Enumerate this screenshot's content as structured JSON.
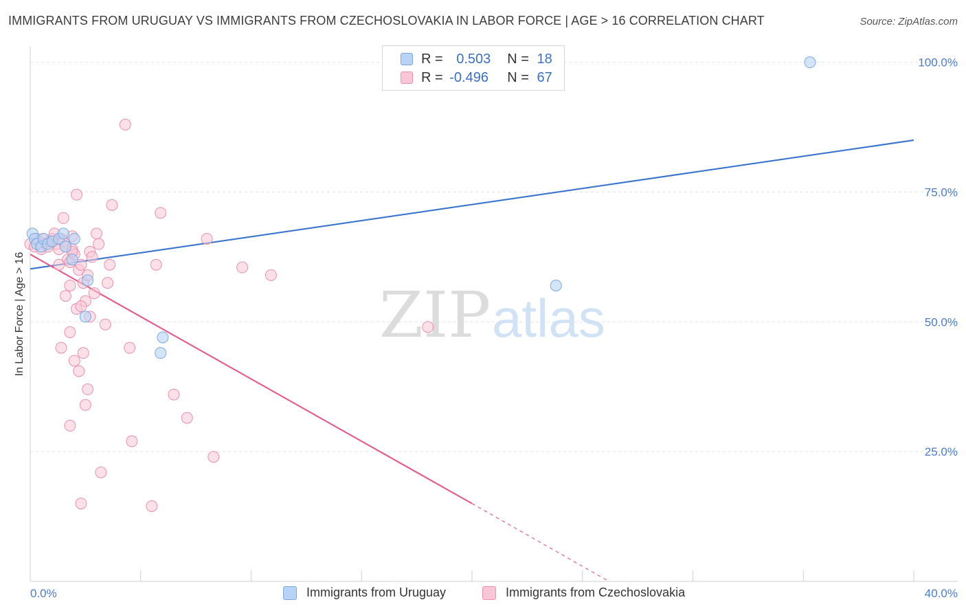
{
  "title": "IMMIGRANTS FROM URUGUAY VS IMMIGRANTS FROM CZECHOSLOVAKIA IN LABOR FORCE | AGE > 16 CORRELATION CHART",
  "source": "Source: ZipAtlas.com",
  "watermark": {
    "zip": "ZIP",
    "atlas": "atlas"
  },
  "legend_top": {
    "rows": [
      {
        "r_label": "R = ",
        "r_value": "0.503",
        "n_label": "N = ",
        "n_value": "18"
      },
      {
        "r_label": "R = ",
        "r_value": "-0.496",
        "n_label": "N = ",
        "n_value": "67"
      }
    ]
  },
  "legend_bottom": {
    "uruguay": "Immigrants from Uruguay",
    "czech": "Immigrants from Czechoslovakia"
  },
  "colors": {
    "uruguay_fill": "#b8d3f5",
    "uruguay_stroke": "#7aa7e0",
    "uruguay_line": "#3a74cc",
    "czech_fill": "#f9c6d6",
    "czech_stroke": "#ea8fae",
    "czech_line": "#e0608f",
    "grid": "#e3e3e3",
    "tick_text": "#4a7cc9"
  },
  "chart_data": {
    "type": "scatter",
    "title": "IMMIGRANTS FROM URUGUAY VS IMMIGRANTS FROM CZECHOSLOVAKIA IN LABOR FORCE | AGE > 16 CORRELATION CHART",
    "xlabel": "",
    "ylabel": "In Labor Force | Age > 16",
    "xlim": [
      0,
      40
    ],
    "ylim": [
      0,
      103
    ],
    "x_tick_labels": [
      "0.0%",
      "40.0%"
    ],
    "y_ticks": [
      25,
      50,
      75,
      100
    ],
    "y_tick_labels": [
      "25.0%",
      "50.0%",
      "75.0%",
      "100.0%"
    ],
    "grid": true,
    "series": [
      {
        "name": "Immigrants from Uruguay",
        "x": [
          0.1,
          0.2,
          0.3,
          0.5,
          0.6,
          0.8,
          1.0,
          1.3,
          1.5,
          1.6,
          1.9,
          2.0,
          2.5,
          2.6,
          5.9,
          6.0,
          23.8,
          35.3
        ],
        "y": [
          67.0,
          66.0,
          65.0,
          64.5,
          66.0,
          65.0,
          65.5,
          66.0,
          67.0,
          64.5,
          62.0,
          66.0,
          51.0,
          58.0,
          44.0,
          47.0,
          57.0,
          100.0
        ],
        "regression": {
          "x": [
            0,
            40
          ],
          "y": [
            60.2,
            85.0
          ]
        }
      },
      {
        "name": "Immigrants from Czechoslovakia",
        "x": [
          0.0,
          0.2,
          0.3,
          0.4,
          0.5,
          0.6,
          0.7,
          0.8,
          0.9,
          1.0,
          1.1,
          1.2,
          1.3,
          1.4,
          1.5,
          1.6,
          1.7,
          1.8,
          1.9,
          2.0,
          1.5,
          1.6,
          1.8,
          1.9,
          2.1,
          2.2,
          2.3,
          2.4,
          2.5,
          2.6,
          2.7,
          2.8,
          2.9,
          3.0,
          1.3,
          1.4,
          1.8,
          2.0,
          2.2,
          2.5,
          2.6,
          2.7,
          3.2,
          3.4,
          3.5,
          3.6,
          1.9,
          2.1,
          2.3,
          2.4,
          3.1,
          3.7,
          4.3,
          4.5,
          4.6,
          5.5,
          5.7,
          5.9,
          6.5,
          7.1,
          8.0,
          8.3,
          9.6,
          10.9,
          18.0,
          1.8,
          2.3
        ],
        "y": [
          65.0,
          64.5,
          66.0,
          65.5,
          64.0,
          66.0,
          65.0,
          64.5,
          65.5,
          66.0,
          67.0,
          65.0,
          64.0,
          66.0,
          65.5,
          64.5,
          62.0,
          61.5,
          64.0,
          63.0,
          70.0,
          55.0,
          57.0,
          63.5,
          74.5,
          60.0,
          61.0,
          57.5,
          54.0,
          59.0,
          63.5,
          62.5,
          55.5,
          67.0,
          61.0,
          45.0,
          48.0,
          42.5,
          40.5,
          34.0,
          37.0,
          51.0,
          21.0,
          49.5,
          57.5,
          61.0,
          66.5,
          52.5,
          53.0,
          44.0,
          65.0,
          72.5,
          88.0,
          45.0,
          27.0,
          14.5,
          61.0,
          71.0,
          36.0,
          31.5,
          66.0,
          24.0,
          60.5,
          59.0,
          49.0,
          30.0,
          15.0
        ],
        "regression": {
          "x": [
            0,
            20
          ],
          "y": [
            63.0,
            15.0
          ]
        },
        "regression_extension": {
          "x": [
            20,
            26.2
          ],
          "y": [
            15.0,
            0.0
          ]
        }
      }
    ]
  }
}
